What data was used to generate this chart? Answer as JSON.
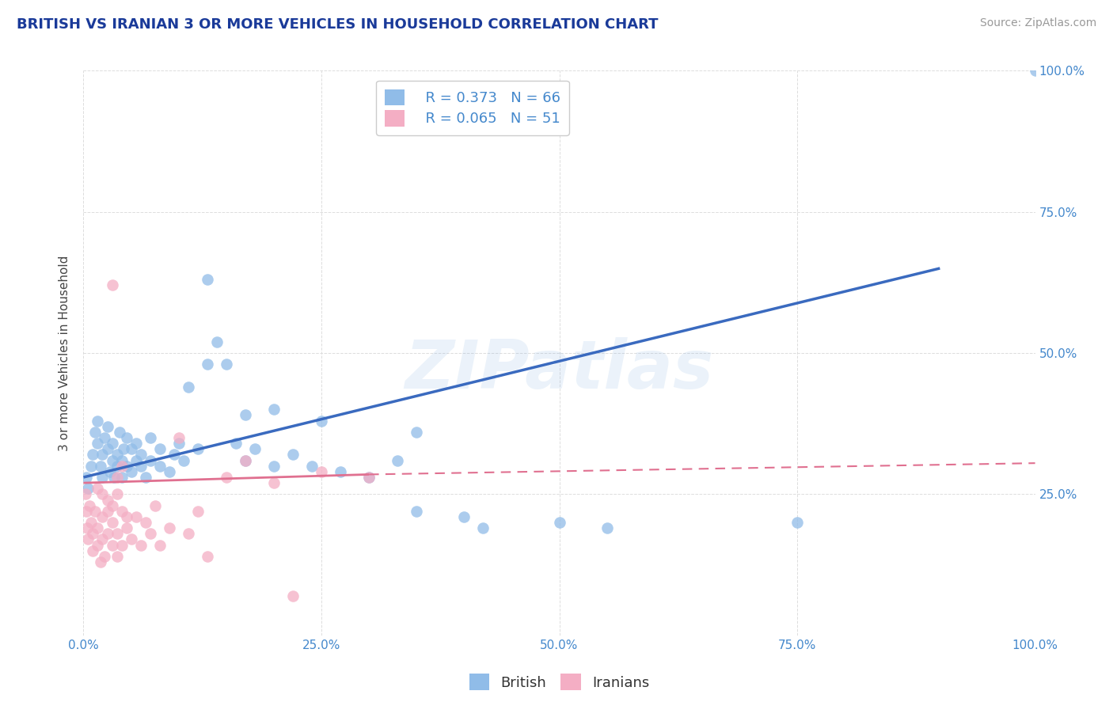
{
  "title": "BRITISH VS IRANIAN 3 OR MORE VEHICLES IN HOUSEHOLD CORRELATION CHART",
  "source": "Source: ZipAtlas.com",
  "ylabel": "3 or more Vehicles in Household",
  "watermark": "ZIPatlas",
  "legend_blue_r": "R = 0.373",
  "legend_blue_n": "N = 66",
  "legend_pink_r": "R = 0.065",
  "legend_pink_n": "N = 51",
  "blue_color": "#90bce8",
  "pink_color": "#f4aec4",
  "blue_line_color": "#3a6abf",
  "pink_line_color": "#e07090",
  "axis_label_color": "#4488cc",
  "title_color": "#1a3a99",
  "source_color": "#999999",
  "blue_points": [
    [
      0.3,
      28.0
    ],
    [
      0.5,
      26.0
    ],
    [
      0.8,
      30.0
    ],
    [
      1.0,
      32.0
    ],
    [
      1.2,
      36.0
    ],
    [
      1.5,
      34.0
    ],
    [
      1.5,
      38.0
    ],
    [
      1.8,
      30.0
    ],
    [
      2.0,
      28.0
    ],
    [
      2.0,
      32.0
    ],
    [
      2.2,
      35.0
    ],
    [
      2.5,
      33.0
    ],
    [
      2.5,
      37.0
    ],
    [
      2.8,
      29.0
    ],
    [
      3.0,
      31.0
    ],
    [
      3.0,
      34.0
    ],
    [
      3.2,
      28.0
    ],
    [
      3.5,
      30.0
    ],
    [
      3.5,
      32.0
    ],
    [
      3.8,
      36.0
    ],
    [
      4.0,
      28.0
    ],
    [
      4.0,
      31.0
    ],
    [
      4.2,
      33.0
    ],
    [
      4.5,
      30.0
    ],
    [
      4.5,
      35.0
    ],
    [
      5.0,
      29.0
    ],
    [
      5.0,
      33.0
    ],
    [
      5.5,
      31.0
    ],
    [
      5.5,
      34.0
    ],
    [
      6.0,
      30.0
    ],
    [
      6.0,
      32.0
    ],
    [
      6.5,
      28.0
    ],
    [
      7.0,
      31.0
    ],
    [
      7.0,
      35.0
    ],
    [
      8.0,
      30.0
    ],
    [
      8.0,
      33.0
    ],
    [
      9.0,
      29.0
    ],
    [
      9.5,
      32.0
    ],
    [
      10.0,
      34.0
    ],
    [
      10.5,
      31.0
    ],
    [
      11.0,
      44.0
    ],
    [
      12.0,
      33.0
    ],
    [
      13.0,
      63.0
    ],
    [
      14.0,
      52.0
    ],
    [
      15.0,
      48.0
    ],
    [
      16.0,
      34.0
    ],
    [
      17.0,
      31.0
    ],
    [
      18.0,
      33.0
    ],
    [
      20.0,
      30.0
    ],
    [
      22.0,
      32.0
    ],
    [
      24.0,
      30.0
    ],
    [
      27.0,
      29.0
    ],
    [
      30.0,
      28.0
    ],
    [
      33.0,
      31.0
    ],
    [
      35.0,
      22.0
    ],
    [
      40.0,
      21.0
    ],
    [
      42.0,
      19.0
    ],
    [
      50.0,
      20.0
    ],
    [
      55.0,
      19.0
    ],
    [
      75.0,
      20.0
    ],
    [
      35.0,
      36.0
    ],
    [
      25.0,
      38.0
    ],
    [
      20.0,
      40.0
    ],
    [
      17.0,
      39.0
    ],
    [
      13.0,
      48.0
    ],
    [
      100.0,
      100.0
    ]
  ],
  "pink_points": [
    [
      0.2,
      25.0
    ],
    [
      0.3,
      22.0
    ],
    [
      0.4,
      19.0
    ],
    [
      0.5,
      17.0
    ],
    [
      0.6,
      23.0
    ],
    [
      0.8,
      20.0
    ],
    [
      1.0,
      15.0
    ],
    [
      1.0,
      18.0
    ],
    [
      1.2,
      22.0
    ],
    [
      1.5,
      16.0
    ],
    [
      1.5,
      19.0
    ],
    [
      1.8,
      13.0
    ],
    [
      2.0,
      17.0
    ],
    [
      2.0,
      21.0
    ],
    [
      2.2,
      14.0
    ],
    [
      2.5,
      18.0
    ],
    [
      2.5,
      22.0
    ],
    [
      3.0,
      16.0
    ],
    [
      3.0,
      20.0
    ],
    [
      3.0,
      62.0
    ],
    [
      3.5,
      14.0
    ],
    [
      3.5,
      18.0
    ],
    [
      3.5,
      28.0
    ],
    [
      4.0,
      16.0
    ],
    [
      4.0,
      30.0
    ],
    [
      4.5,
      19.0
    ],
    [
      5.0,
      17.0
    ],
    [
      5.5,
      21.0
    ],
    [
      6.0,
      16.0
    ],
    [
      6.5,
      20.0
    ],
    [
      7.0,
      18.0
    ],
    [
      7.5,
      23.0
    ],
    [
      8.0,
      16.0
    ],
    [
      9.0,
      19.0
    ],
    [
      10.0,
      35.0
    ],
    [
      11.0,
      18.0
    ],
    [
      12.0,
      22.0
    ],
    [
      13.0,
      14.0
    ],
    [
      15.0,
      28.0
    ],
    [
      17.0,
      31.0
    ],
    [
      20.0,
      27.0
    ],
    [
      22.0,
      7.0
    ],
    [
      25.0,
      29.0
    ],
    [
      30.0,
      28.0
    ],
    [
      1.5,
      26.0
    ],
    [
      2.0,
      25.0
    ],
    [
      2.5,
      24.0
    ],
    [
      3.0,
      23.0
    ],
    [
      3.5,
      25.0
    ],
    [
      4.0,
      22.0
    ],
    [
      4.5,
      21.0
    ]
  ],
  "xlim": [
    0,
    100
  ],
  "ylim": [
    0,
    100
  ],
  "xticks": [
    0,
    25,
    50,
    75,
    100
  ],
  "xticklabels": [
    "0.0%",
    "25.0%",
    "50.0%",
    "75.0%",
    "100.0%"
  ],
  "right_yticks": [
    25,
    50,
    75,
    100
  ],
  "right_yticklabels": [
    "25.0%",
    "50.0%",
    "75.0%",
    "100.0%"
  ],
  "blue_trend": [
    0,
    28.0,
    90,
    65.0
  ],
  "pink_trend_solid": [
    0,
    27.0,
    30,
    28.5
  ],
  "pink_trend_dash": [
    30,
    28.5,
    100,
    30.5
  ],
  "grid_color": "#dddddd",
  "background_color": "#ffffff"
}
